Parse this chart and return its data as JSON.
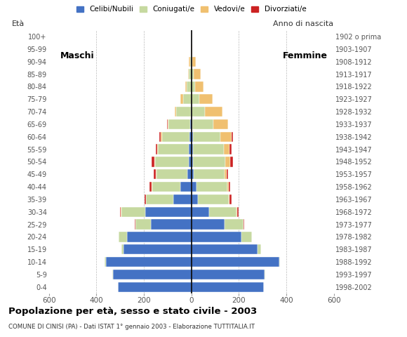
{
  "age_groups": [
    "0-4",
    "5-9",
    "10-14",
    "15-19",
    "20-24",
    "25-29",
    "30-34",
    "35-39",
    "40-44",
    "45-49",
    "50-54",
    "55-59",
    "60-64",
    "65-69",
    "70-74",
    "75-79",
    "80-84",
    "85-89",
    "90-94",
    "95-99",
    "100+"
  ],
  "birth_years": [
    "1998-2002",
    "1993-1997",
    "1988-1992",
    "1983-1987",
    "1978-1982",
    "1973-1977",
    "1968-1972",
    "1963-1967",
    "1958-1962",
    "1953-1957",
    "1948-1952",
    "1943-1947",
    "1938-1942",
    "1933-1937",
    "1928-1932",
    "1923-1927",
    "1918-1922",
    "1913-1917",
    "1908-1912",
    "1903-1907",
    "1902 o prima"
  ],
  "male": {
    "celibi": [
      310,
      330,
      360,
      285,
      270,
      170,
      195,
      75,
      45,
      18,
      12,
      10,
      8,
      5,
      3,
      0,
      0,
      0,
      0,
      0,
      0
    ],
    "coniugati": [
      0,
      2,
      5,
      10,
      35,
      65,
      100,
      115,
      120,
      130,
      140,
      130,
      115,
      90,
      60,
      35,
      20,
      10,
      5,
      0,
      0
    ],
    "vedovi": [
      0,
      0,
      0,
      0,
      0,
      1,
      1,
      2,
      2,
      2,
      2,
      3,
      5,
      5,
      8,
      10,
      5,
      5,
      5,
      0,
      0
    ],
    "divorziati": [
      0,
      0,
      0,
      0,
      0,
      2,
      5,
      5,
      10,
      8,
      12,
      8,
      8,
      3,
      0,
      0,
      0,
      0,
      0,
      0,
      0
    ]
  },
  "female": {
    "celibi": [
      305,
      310,
      370,
      280,
      210,
      140,
      75,
      28,
      22,
      10,
      8,
      7,
      6,
      4,
      2,
      0,
      0,
      0,
      0,
      0,
      0
    ],
    "coniugati": [
      0,
      2,
      5,
      15,
      45,
      80,
      115,
      130,
      130,
      130,
      135,
      130,
      115,
      90,
      55,
      35,
      15,
      10,
      5,
      0,
      0
    ],
    "vedovi": [
      0,
      0,
      0,
      0,
      0,
      1,
      2,
      3,
      5,
      10,
      20,
      25,
      50,
      60,
      75,
      55,
      35,
      30,
      15,
      5,
      0
    ],
    "divorziati": [
      0,
      0,
      0,
      0,
      0,
      3,
      8,
      10,
      8,
      5,
      12,
      8,
      5,
      0,
      0,
      0,
      0,
      0,
      0,
      0,
      0
    ]
  },
  "colors": {
    "celibi": "#4472c4",
    "coniugati": "#c6d9a0",
    "vedovi": "#f0c070",
    "divorziati": "#cc2222"
  },
  "xlim": 600,
  "title": "Popolazione per à età, sesso e stato civile - 2003",
  "title_clean": "Popolazione per età, sesso e stato civile - 2003",
  "subtitle": "COMUNE DI CINISI (PA) - Dati ISTAT 1° gennaio 2003 - Elaborazione TUTTITALIA.IT",
  "ylabel_left": "Età",
  "ylabel_right": "Anno di nascita",
  "label_maschi": "Maschi",
  "label_femmine": "Femmine",
  "legend_labels": [
    "Celibi/Nubili",
    "Coniugati/e",
    "Vedovi/e",
    "Divorziati/e"
  ],
  "background_color": "#ffffff",
  "grid_color": "#aaaaaa"
}
